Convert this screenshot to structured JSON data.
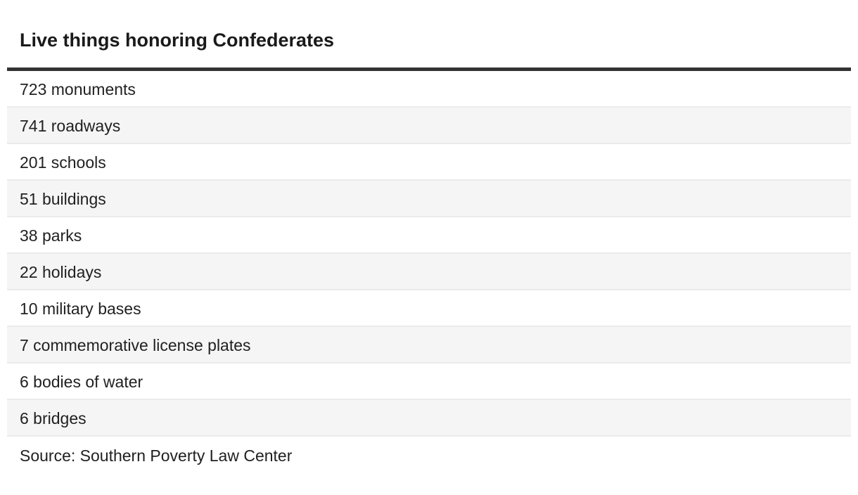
{
  "colors": {
    "text": "#212121",
    "title": "#1a1a1a",
    "rule": "#333333",
    "row-alt": "#f5f5f5",
    "row-border": "#ebebeb"
  },
  "chart_data": {
    "type": "table",
    "title": "Live things honoring Confederates",
    "source": "Source: Southern Poverty Law Center",
    "columns": [
      "count",
      "label"
    ],
    "rows": [
      {
        "value": 723,
        "label": "monuments",
        "text": "723 monuments"
      },
      {
        "value": 741,
        "label": "roadways",
        "text": "741 roadways"
      },
      {
        "value": 201,
        "label": "schools",
        "text": "201 schools"
      },
      {
        "value": 51,
        "label": "buildings",
        "text": "51 buildings"
      },
      {
        "value": 38,
        "label": "parks",
        "text": "38 parks"
      },
      {
        "value": 22,
        "label": "holidays",
        "text": "22 holidays"
      },
      {
        "value": 10,
        "label": "military bases",
        "text": "10 military bases"
      },
      {
        "value": 7,
        "label": "commemorative license plates",
        "text": "7 commemorative license plates"
      },
      {
        "value": 6,
        "label": "bodies of water",
        "text": "6 bodies of water"
      },
      {
        "value": 6,
        "label": "bridges",
        "text": "6 bridges"
      }
    ],
    "layout": {
      "zebra_striping": true,
      "first_row_background": "white",
      "title_rule_thickness_px": 5
    }
  }
}
